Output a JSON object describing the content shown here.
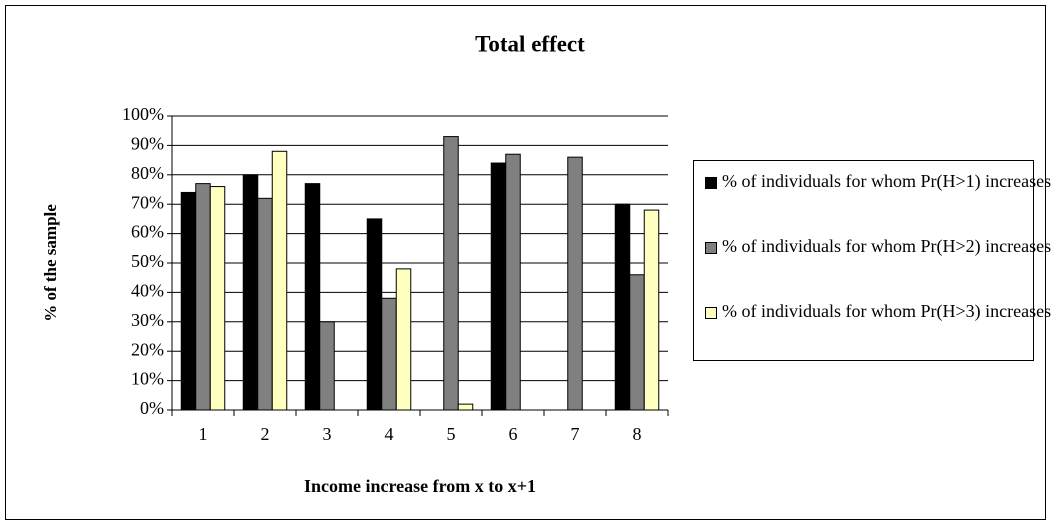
{
  "chart_data": {
    "type": "bar",
    "title": "Total effect",
    "x_label": "Income increase from x to x+1",
    "y_label": "% of the sample",
    "categories": [
      "1",
      "2",
      "3",
      "4",
      "5",
      "6",
      "7",
      "8"
    ],
    "series": [
      {
        "name": "% of individuals for whom Pr(H>1) increases",
        "color": "#000000",
        "values": [
          74,
          80,
          77,
          65,
          null,
          84,
          null,
          70
        ]
      },
      {
        "name": "% of individuals for whom Pr(H>2) increases",
        "color": "#808080",
        "values": [
          77,
          72,
          30,
          38,
          93,
          87,
          86,
          46
        ]
      },
      {
        "name": "% of individuals for whom Pr(H>3) increases",
        "color": "#ffffc0",
        "values": [
          76,
          88,
          null,
          48,
          2,
          null,
          null,
          68
        ]
      }
    ],
    "ylim": [
      0,
      100
    ],
    "yticks": [
      {
        "value": 0,
        "label": "0%"
      },
      {
        "value": 10,
        "label": "10%"
      },
      {
        "value": 20,
        "label": "20%"
      },
      {
        "value": 30,
        "label": "30%"
      },
      {
        "value": 40,
        "label": "40%"
      },
      {
        "value": 50,
        "label": "50%"
      },
      {
        "value": 60,
        "label": "60%"
      },
      {
        "value": 70,
        "label": "70%"
      },
      {
        "value": 80,
        "label": "80%"
      },
      {
        "value": 90,
        "label": "90%"
      },
      {
        "value": 100,
        "label": "100%"
      }
    ],
    "grid": true,
    "legend": "right"
  }
}
